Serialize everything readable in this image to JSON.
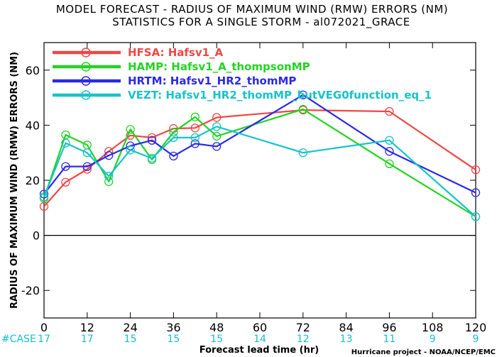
{
  "chart_data": {
    "type": "line",
    "title": "MODEL FORECAST - RADIUS OF MAXIMUM WIND (RMW) ERRORS (NM)",
    "subtitle": "STATISTICS FOR A SINGLE STORM - al072021_GRACE",
    "xlabel": "Forecast lead time (hr)",
    "ylabel": "RADIUS OF MAXIMUM WIND (RMW) ERRORS (NM)",
    "xlim": [
      0,
      120
    ],
    "ylim": [
      -30,
      70
    ],
    "x_ticks": [
      0,
      12,
      24,
      36,
      48,
      60,
      72,
      84,
      96,
      108,
      120
    ],
    "y_ticks": [
      -20,
      0,
      20,
      40,
      60
    ],
    "y_tick_labels": [
      "-20",
      "0",
      "20",
      "40",
      "60"
    ],
    "grid": false,
    "legend_position": "top-left",
    "case_label": "#CASE",
    "case_x": [
      0,
      12,
      24,
      36,
      48,
      60,
      72,
      84,
      96,
      108,
      120
    ],
    "case_counts": [
      "17",
      "17",
      "15",
      "15",
      "15",
      "14",
      "12",
      "13",
      "11",
      "9",
      "9"
    ],
    "credit": "Hurricane project - NOAA/NCEP/EMC",
    "series": [
      {
        "name": "HFSA:  Hafsv1_A",
        "color": "#ef4747",
        "x": [
          0,
          6,
          12,
          18,
          24,
          30,
          36,
          42,
          48,
          72,
          96,
          120
        ],
        "values": [
          10.5,
          19.3,
          24.0,
          30.5,
          36.3,
          35.5,
          38.8,
          39.0,
          42.8,
          45.5,
          45.0,
          23.8
        ]
      },
      {
        "name": "HAMP:  Hafsv1_A_thompsonMP",
        "color": "#22d422",
        "x": [
          0,
          6,
          12,
          18,
          24,
          30,
          36,
          42,
          48,
          72,
          96,
          120
        ],
        "values": [
          13.5,
          36.5,
          32.8,
          19.5,
          38.5,
          27.5,
          37.5,
          43.0,
          36.0,
          45.8,
          26.0,
          6.8
        ]
      },
      {
        "name": "HRTM:  Hafsv1_HR2_thomMP",
        "color": "#2a2ae8",
        "x": [
          0,
          6,
          12,
          18,
          24,
          30,
          36,
          42,
          48,
          72,
          96,
          120
        ],
        "values": [
          15.0,
          25.0,
          25.0,
          29.0,
          32.5,
          34.5,
          28.8,
          33.3,
          32.3,
          51.0,
          30.5,
          15.5
        ]
      },
      {
        "name": "VEZT:  Hafsv1_HR2_thomMP_butVEG0function_eq_1",
        "color": "#17c3c9",
        "x": [
          0,
          6,
          12,
          18,
          24,
          30,
          36,
          42,
          48,
          72,
          96,
          120
        ],
        "values": [
          14.0,
          33.5,
          30.0,
          21.5,
          31.0,
          28.0,
          35.5,
          35.5,
          39.5,
          30.0,
          34.5,
          6.8
        ]
      }
    ]
  }
}
